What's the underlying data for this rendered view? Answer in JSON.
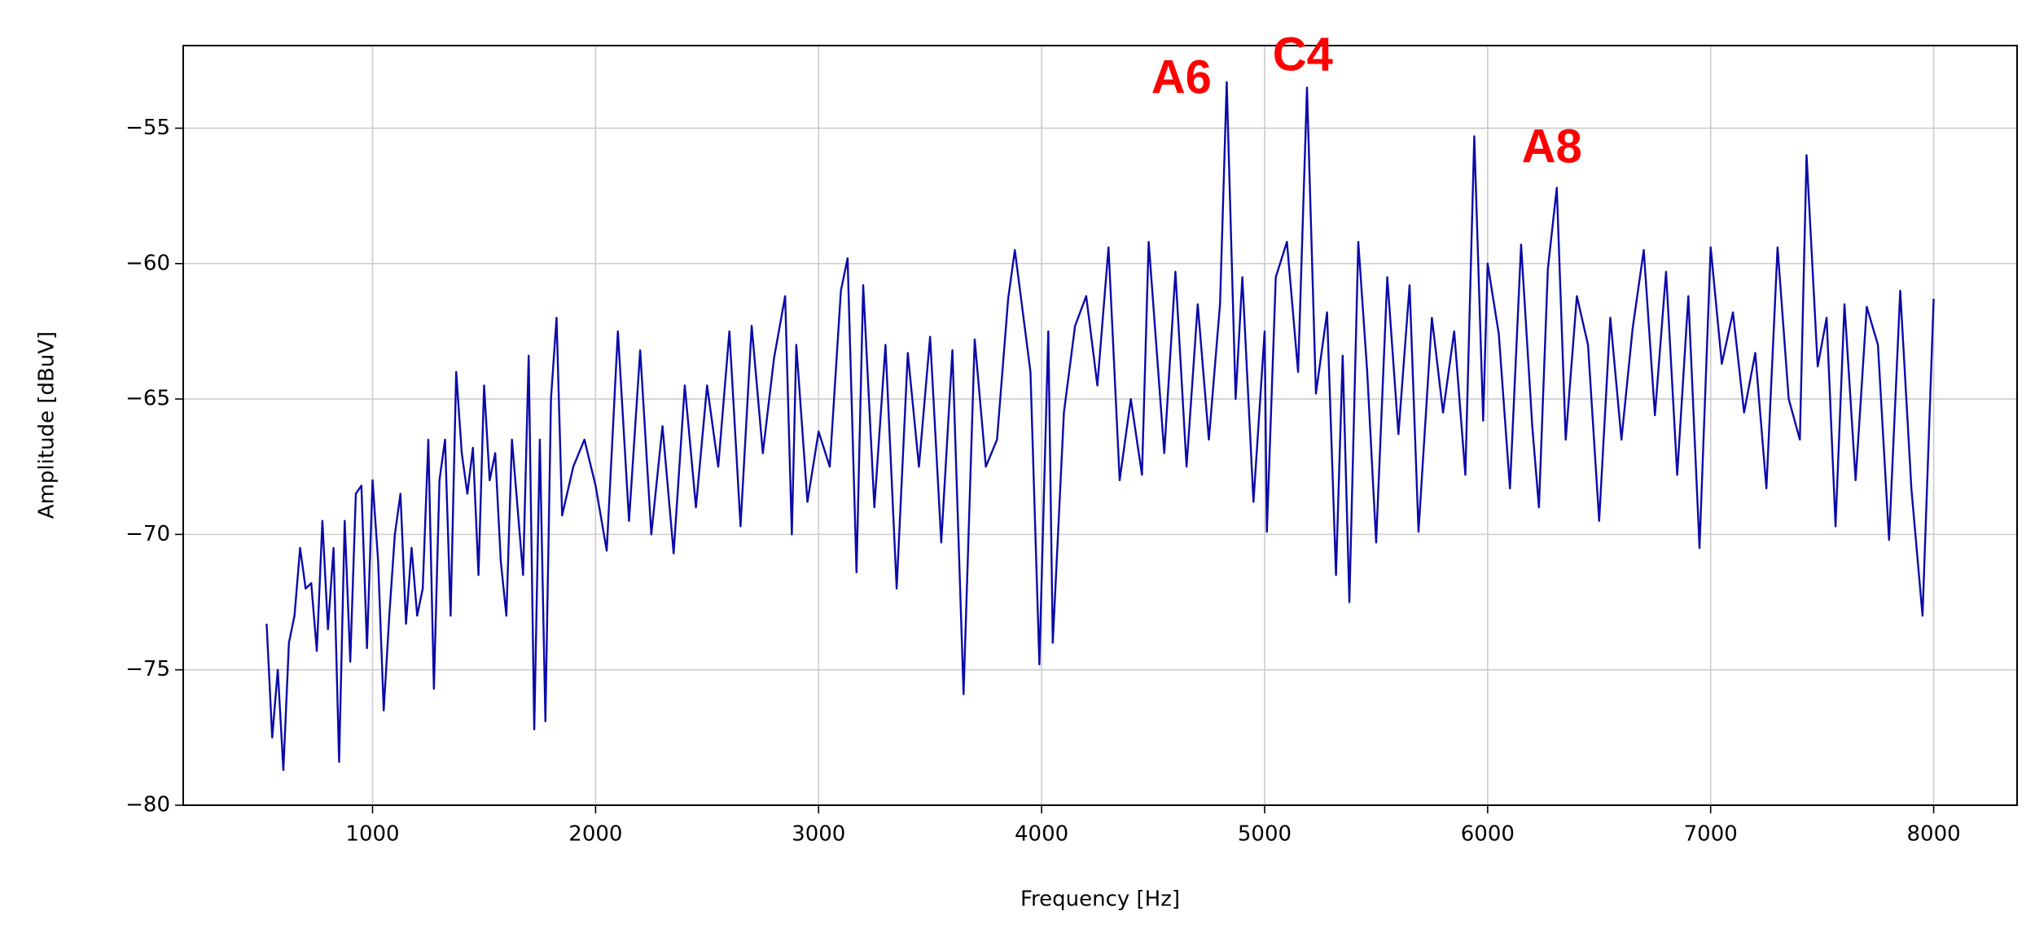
{
  "chart_data": {
    "type": "line",
    "xlabel": "Frequency [Hz]",
    "ylabel": "Amplitude [dBuV]",
    "x": [
      525,
      550,
      575,
      600,
      625,
      650,
      675,
      700,
      725,
      750,
      775,
      800,
      825,
      850,
      875,
      900,
      925,
      950,
      975,
      1000,
      1025,
      1050,
      1075,
      1100,
      1125,
      1150,
      1175,
      1200,
      1225,
      1250,
      1275,
      1300,
      1325,
      1350,
      1375,
      1400,
      1425,
      1450,
      1475,
      1500,
      1525,
      1550,
      1575,
      1600,
      1625,
      1650,
      1675,
      1700,
      1725,
      1750,
      1775,
      1800,
      1825,
      1850,
      1900,
      1950,
      2000,
      2050,
      2100,
      2150,
      2200,
      2250,
      2300,
      2350,
      2400,
      2450,
      2500,
      2550,
      2600,
      2650,
      2700,
      2750,
      2800,
      2850,
      2880,
      2900,
      2950,
      3000,
      3050,
      3100,
      3130,
      3170,
      3200,
      3250,
      3300,
      3350,
      3400,
      3450,
      3500,
      3550,
      3600,
      3650,
      3700,
      3750,
      3800,
      3850,
      3880,
      3950,
      3990,
      4030,
      4050,
      4100,
      4150,
      4200,
      4250,
      4300,
      4350,
      4400,
      4450,
      4480,
      4550,
      4600,
      4650,
      4700,
      4750,
      4800,
      4830,
      4870,
      4900,
      4950,
      5000,
      5010,
      5050,
      5100,
      5150,
      5190,
      5230,
      5280,
      5320,
      5350,
      5380,
      5420,
      5460,
      5500,
      5550,
      5600,
      5650,
      5690,
      5750,
      5800,
      5850,
      5900,
      5940,
      5980,
      6000,
      6050,
      6100,
      6150,
      6200,
      6230,
      6270,
      6310,
      6350,
      6400,
      6450,
      6500,
      6550,
      6600,
      6650,
      6700,
      6750,
      6800,
      6850,
      6900,
      6950,
      7000,
      7050,
      7100,
      7150,
      7200,
      7250,
      7300,
      7350,
      7400,
      7430,
      7480,
      7520,
      7560,
      7600,
      7650,
      7700,
      7750,
      7800,
      7850,
      7900,
      7950,
      8000
    ],
    "series": [
      {
        "color": "#0a0aaa",
        "values": [
          -73.3,
          -77.5,
          -75,
          -78.7,
          -74,
          -73,
          -70.5,
          -72,
          -71.8,
          -74.3,
          -69.5,
          -73.5,
          -70.5,
          -78.4,
          -69.5,
          -74.7,
          -68.5,
          -68.2,
          -74.2,
          -68,
          -71,
          -76.5,
          -73,
          -70,
          -68.5,
          -73.3,
          -70.5,
          -73,
          -72,
          -66.5,
          -75.7,
          -68,
          -66.5,
          -73,
          -64,
          -67,
          -68.5,
          -66.8,
          -71.5,
          -64.5,
          -68,
          -67,
          -71,
          -73,
          -66.5,
          -69,
          -71.5,
          -63.4,
          -77.2,
          -66.5,
          -76.9,
          -65,
          -62,
          -69.3,
          -67.5,
          -66.5,
          -68.2,
          -70.6,
          -62.5,
          -69.5,
          -63.2,
          -70,
          -66,
          -70.7,
          -64.5,
          -69,
          -64.5,
          -67.5,
          -62.5,
          -69.7,
          -62.3,
          -67,
          -63.5,
          -61.2,
          -70,
          -63,
          -68.8,
          -66.2,
          -67.5,
          -61,
          -59.8,
          -71.4,
          -60.8,
          -69,
          -63,
          -72,
          -63.3,
          -67.5,
          -62.7,
          -70.3,
          -63.2,
          -75.9,
          -62.8,
          -67.5,
          -66.5,
          -61.3,
          -59.5,
          -64,
          -74.8,
          -62.5,
          -74,
          -65.5,
          -62.3,
          -61.2,
          -64.5,
          -59.4,
          -68,
          -65,
          -67.8,
          -59.2,
          -67,
          -60.3,
          -67.5,
          -61.5,
          -66.5,
          -61.5,
          -53.3,
          -65,
          -60.5,
          -68.8,
          -62.5,
          -69.9,
          -60.5,
          -59.2,
          -64,
          -53.5,
          -64.8,
          -61.8,
          -71.5,
          -63.4,
          -72.5,
          -59.2,
          -64,
          -70.3,
          -60.5,
          -66.3,
          -60.8,
          -69.9,
          -62,
          -65.5,
          -62.5,
          -67.8,
          -55.3,
          -65.8,
          -60,
          -62.6,
          -68.3,
          -59.3,
          -66,
          -69,
          -60.2,
          -57.2,
          -66.5,
          -61.2,
          -63,
          -69.5,
          -62,
          -66.5,
          -62.4,
          -59.5,
          -65.6,
          -60.3,
          -67.8,
          -61.2,
          -70.5,
          -59.4,
          -63.7,
          -61.8,
          -65.5,
          -63.3,
          -68.3,
          -59.4,
          -65,
          -66.5,
          -56,
          -63.8,
          -62,
          -69.7,
          -61.5,
          -68,
          -61.6,
          -63,
          -70.2,
          -61,
          -68.3,
          -73,
          -61.3
        ]
      }
    ],
    "xlim": [
      151,
      8374
    ],
    "ylim": [
      -80,
      -51.95
    ],
    "xticks": [
      1000,
      2000,
      3000,
      4000,
      5000,
      6000,
      7000,
      8000
    ],
    "yticks": [
      {
        "value": -80,
        "label": "−80"
      },
      {
        "value": -75,
        "label": "−75"
      },
      {
        "value": -70,
        "label": "−70"
      },
      {
        "value": -65,
        "label": "−65"
      },
      {
        "value": -60,
        "label": "−60"
      },
      {
        "value": -55,
        "label": "−55"
      }
    ],
    "grid": true,
    "annotations": [
      {
        "text": "A6",
        "x": 4627,
        "y": -53.25,
        "color": "#ff0000"
      },
      {
        "text": "C4",
        "x": 5171,
        "y": -52.4,
        "color": "#ff0000"
      },
      {
        "text": "A8",
        "x": 6288,
        "y": -55.8,
        "color": "#ff0000"
      }
    ]
  }
}
